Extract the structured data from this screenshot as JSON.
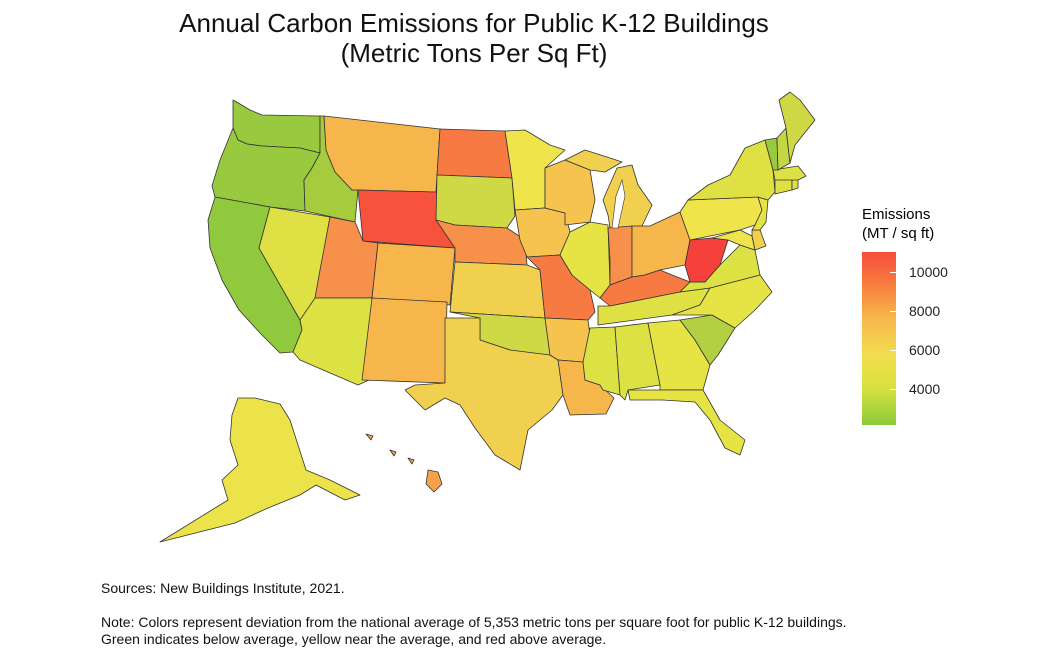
{
  "title": {
    "line1": "Annual Carbon Emissions for Public K-12 Buildings",
    "line2": "(Metric Tons Per Sq Ft)"
  },
  "legend": {
    "title_line1": "Emissions",
    "title_line2": "(MT / sq ft)",
    "ticks": [
      "10000",
      "8000",
      "6000",
      "4000"
    ]
  },
  "colors": {
    "low": "#8ccb3c",
    "mid": "#f2de4e",
    "high": "#f64d3b",
    "border": "#333333"
  },
  "map": {
    "type": "choropleth",
    "region": "United States",
    "states": {
      "WA": "#98c93f",
      "OR": "#98c93f",
      "CA": "#90c93e",
      "ID": "#a6cc3e",
      "NV": "#dfe043",
      "MT": "#f6b64b",
      "WY": "#f7523c",
      "UT": "#f7904a",
      "AZ": "#dde244",
      "CO": "#f6b64b",
      "NM": "#f6b64b",
      "ND": "#f77a43",
      "SD": "#cfd845",
      "NE": "#f7914a",
      "KS": "#f2d04f",
      "OK": "#cfd845",
      "TX": "#f2d04f",
      "MN": "#efe44b",
      "IA": "#f6c34e",
      "MO": "#f77a43",
      "AR": "#f6c34e",
      "LA": "#f6b64b",
      "WI": "#f6c34e",
      "IL": "#e6e445",
      "MI": "#f2d04f",
      "IN": "#f7904a",
      "OH": "#f6b64b",
      "KY": "#f77a43",
      "TN": "#dfe043",
      "MS": "#dde244",
      "AL": "#dde244",
      "GA": "#e6e445",
      "FL": "#e6e445",
      "SC": "#b3d042",
      "NC": "#e6e445",
      "VA": "#dde244",
      "WV": "#f6403a",
      "PA": "#efe44b",
      "NY": "#dfe043",
      "VT": "#98c93f",
      "NH": "#c4d644",
      "ME": "#cfd845",
      "MA": "#dde244",
      "CT": "#dfe043",
      "RI": "#dfe043",
      "NJ": "#e6e445",
      "DE": "#f2d04f",
      "MD": "#efe44b",
      "AK": "#ece34a",
      "HI": "#f6a24a"
    }
  },
  "footer": {
    "sources": "Sources: New Buildings Institute, 2021.",
    "note_line1": "Note: Colors represent deviation from the national average of 5,353 metric tons per square foot for public K-12 buildings.",
    "note_line2": "Green indicates below average, yellow near the average, and red above average."
  }
}
